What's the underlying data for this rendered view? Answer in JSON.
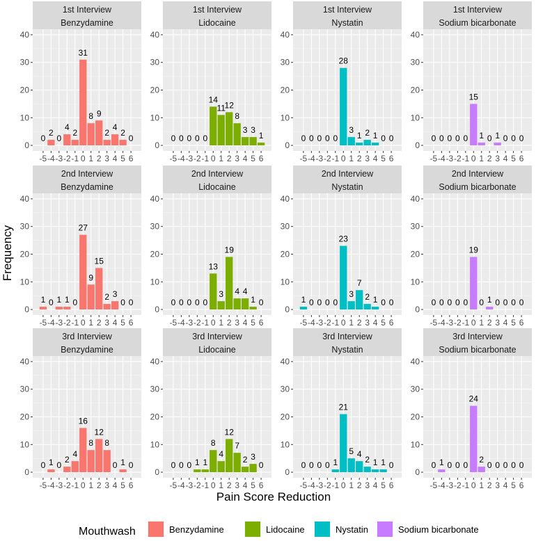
{
  "chart_data": {
    "type": "bar",
    "xlabel": "Pain Score Reduction",
    "ylabel": "Frequency",
    "ylim": [
      0,
      40
    ],
    "yticks": [
      0,
      10,
      20,
      30,
      40
    ],
    "categories": [
      -5,
      -4,
      -3,
      -2,
      -1,
      0,
      1,
      2,
      3,
      4,
      5,
      6
    ],
    "x_tick_labels": [
      "-5",
      "-4",
      "-3",
      "-2",
      "-1",
      "0",
      "1",
      "2",
      "3",
      "4",
      "5",
      "6"
    ],
    "rows": [
      "1st Interview",
      "2nd Interview",
      "3rd Interview"
    ],
    "columns": [
      "Benzydamine",
      "Lidocaine",
      "Nystatin",
      "Sodium bicarbonate"
    ],
    "colors": {
      "Benzydamine": "#F8766D",
      "Lidocaine": "#7CAE00",
      "Nystatin": "#00BFC4",
      "Sodium bicarbonate": "#C77CFF"
    },
    "panels": [
      {
        "interview": "1st Interview",
        "mouthwash": "Benzydamine",
        "bar_labels": [
          "0",
          "2",
          "0",
          "4",
          "2",
          "31",
          "8",
          "9",
          "2",
          "4",
          "2",
          "0"
        ],
        "values": [
          0,
          2,
          0,
          4,
          2,
          31,
          8,
          9,
          2,
          4,
          2,
          0
        ]
      },
      {
        "interview": "1st Interview",
        "mouthwash": "Lidocaine",
        "bar_labels": [
          "0",
          "0",
          "0",
          "0",
          "0",
          "14",
          "11",
          "12",
          "8",
          "3",
          "3",
          "1"
        ],
        "values": [
          0,
          0,
          0,
          0,
          0,
          14,
          11,
          12,
          8,
          3,
          3,
          1
        ]
      },
      {
        "interview": "1st Interview",
        "mouthwash": "Nystatin",
        "bar_labels": [
          "0",
          "0",
          "0",
          "0",
          "0",
          "28",
          "3",
          "1",
          "2",
          "1",
          "0",
          "0"
        ],
        "values": [
          0,
          0,
          0,
          0,
          0,
          28,
          3,
          1,
          2,
          1,
          0,
          0
        ]
      },
      {
        "interview": "1st Interview",
        "mouthwash": "Sodium bicarbonate",
        "bar_labels": [
          "0",
          "0",
          "0",
          "0",
          "0",
          "15",
          "1",
          "0",
          "1",
          "0",
          "0",
          "0"
        ],
        "values": [
          0,
          0,
          0,
          0,
          0,
          15,
          1,
          0,
          1,
          0,
          0,
          0
        ]
      },
      {
        "interview": "2nd Interview",
        "mouthwash": "Benzydamine",
        "bar_labels": [
          "1",
          "0",
          "1",
          "1",
          "0",
          "27",
          "9",
          "15",
          "2",
          "3",
          "0",
          "0"
        ],
        "values": [
          1,
          0,
          1,
          1,
          0,
          27,
          9,
          15,
          2,
          3,
          0,
          0
        ]
      },
      {
        "interview": "2nd Interview",
        "mouthwash": "Lidocaine",
        "bar_labels": [
          "0",
          "0",
          "0",
          "0",
          "0",
          "13",
          "3",
          "19",
          "4",
          "4",
          "1",
          "0"
        ],
        "values": [
          0,
          0,
          0,
          0,
          0,
          13,
          3,
          19,
          4,
          4,
          1,
          0
        ]
      },
      {
        "interview": "2nd Interview",
        "mouthwash": "Nystatin",
        "bar_labels": [
          "1",
          "0",
          "0",
          "0",
          "0",
          "23",
          "3",
          "7",
          "2",
          "1",
          "0",
          "0"
        ],
        "values": [
          1,
          0,
          0,
          0,
          0,
          23,
          3,
          7,
          2,
          1,
          0,
          0
        ]
      },
      {
        "interview": "2nd Interview",
        "mouthwash": "Sodium bicarbonate",
        "bar_labels": [
          "0",
          "0",
          "0",
          "0",
          "0",
          "19",
          "0",
          "1",
          "0",
          "0",
          "0",
          "0"
        ],
        "values": [
          0,
          0,
          0,
          0,
          0,
          19,
          0,
          1,
          0,
          0,
          0,
          0
        ]
      },
      {
        "interview": "3rd Interview",
        "mouthwash": "Benzydamine",
        "bar_labels": [
          "0",
          "1",
          "0",
          "2",
          "4",
          "16",
          "8",
          "12",
          "8",
          "0",
          "1",
          "0"
        ],
        "values": [
          0,
          1,
          0,
          2,
          4,
          16,
          8,
          12,
          8,
          0,
          1,
          0
        ]
      },
      {
        "interview": "3rd Interview",
        "mouthwash": "Lidocaine",
        "bar_labels": [
          "0",
          "0",
          "0",
          "1",
          "1",
          "8",
          "4",
          "12",
          "7",
          "2",
          "3",
          "0"
        ],
        "values": [
          0,
          0,
          0,
          1,
          1,
          8,
          4,
          12,
          7,
          2,
          3,
          0
        ]
      },
      {
        "interview": "3rd Interview",
        "mouthwash": "Nystatin",
        "bar_labels": [
          "0",
          "0",
          "0",
          "0",
          "1",
          "21",
          "5",
          "4",
          "2",
          "1",
          "1",
          "0"
        ],
        "values": [
          0,
          0,
          0,
          0,
          1,
          21,
          5,
          4,
          2,
          1,
          1,
          0
        ]
      },
      {
        "interview": "3rd Interview",
        "mouthwash": "Sodium bicarbonate",
        "bar_labels": [
          "0",
          "1",
          "0",
          "0",
          "0",
          "24",
          "2",
          "0",
          "0",
          "0",
          "0",
          "0"
        ],
        "values": [
          0,
          1,
          0,
          0,
          0,
          24,
          2,
          0,
          0,
          0,
          0,
          0
        ]
      }
    ],
    "legend": {
      "title": "Mouthwash",
      "position": "bottom",
      "items": [
        "Benzydamine",
        "Lidocaine",
        "Nystatin",
        "Sodium bicarbonate"
      ]
    }
  }
}
